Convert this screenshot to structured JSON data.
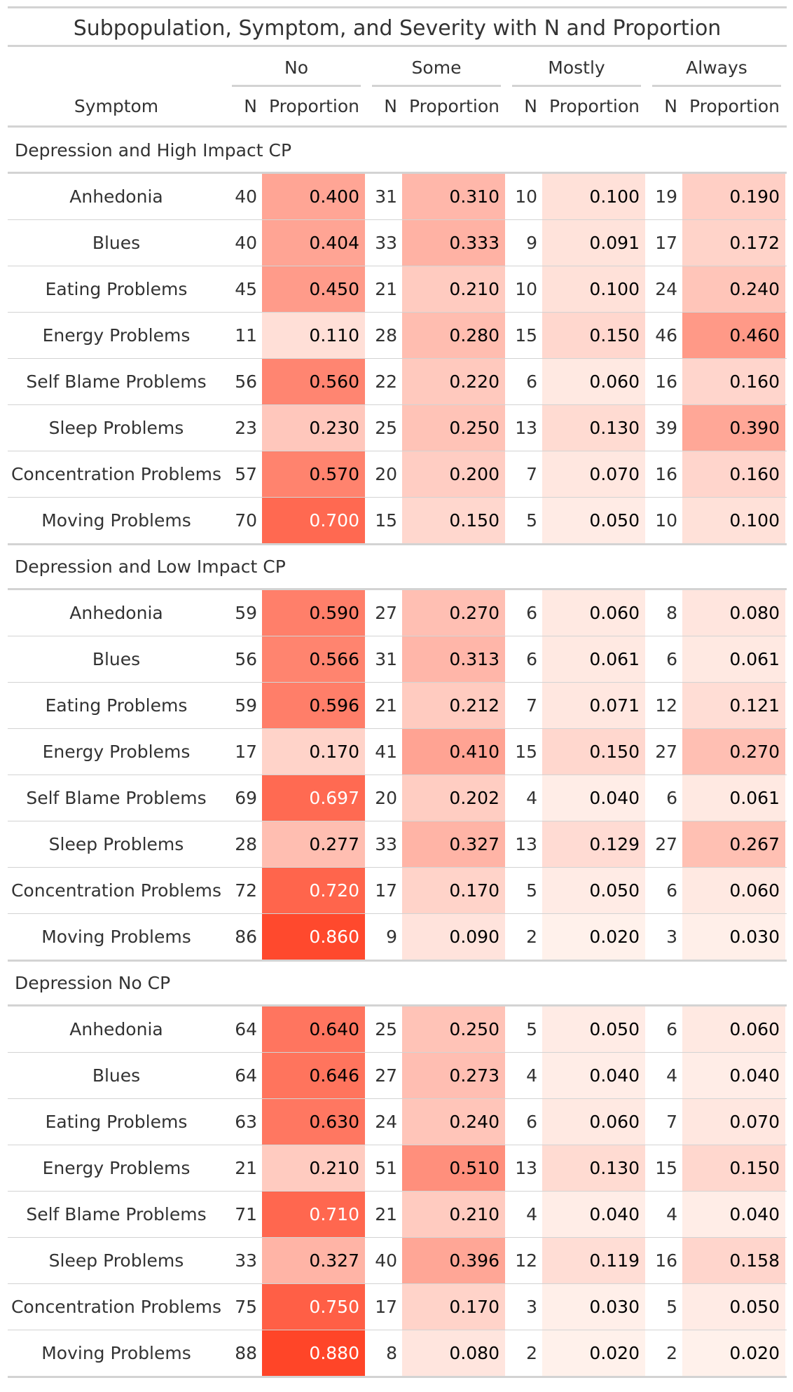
{
  "title": "Subpopulation, Symptom, and Severity with N and Proportion",
  "stub_header": "Symptom",
  "spanners": [
    "No",
    "Some",
    "Mostly",
    "Always"
  ],
  "col_n": "N",
  "col_prop": "Proportion",
  "colors": {
    "heat_low": "#fff5f0",
    "heat_high": "#ff4528",
    "rule": "#d3d3d3",
    "text": "#333333",
    "light_text": "#ffffff"
  },
  "groups": [
    {
      "label": "Depression and High Impact CP",
      "rows": [
        {
          "symptom": "Anhedonia",
          "n": [
            "40",
            "31",
            "10",
            "19"
          ],
          "p": [
            "0.400",
            "0.310",
            "0.100",
            "0.190"
          ]
        },
        {
          "symptom": "Blues",
          "n": [
            "40",
            "33",
            "9",
            "17"
          ],
          "p": [
            "0.404",
            "0.333",
            "0.091",
            "0.172"
          ]
        },
        {
          "symptom": "Eating Problems",
          "n": [
            "45",
            "21",
            "10",
            "24"
          ],
          "p": [
            "0.450",
            "0.210",
            "0.100",
            "0.240"
          ]
        },
        {
          "symptom": "Energy Problems",
          "n": [
            "11",
            "28",
            "15",
            "46"
          ],
          "p": [
            "0.110",
            "0.280",
            "0.150",
            "0.460"
          ]
        },
        {
          "symptom": "Self Blame Problems",
          "n": [
            "56",
            "22",
            "6",
            "16"
          ],
          "p": [
            "0.560",
            "0.220",
            "0.060",
            "0.160"
          ]
        },
        {
          "symptom": "Sleep Problems",
          "n": [
            "23",
            "25",
            "13",
            "39"
          ],
          "p": [
            "0.230",
            "0.250",
            "0.130",
            "0.390"
          ]
        },
        {
          "symptom": "Concentration Problems",
          "n": [
            "57",
            "20",
            "7",
            "16"
          ],
          "p": [
            "0.570",
            "0.200",
            "0.070",
            "0.160"
          ]
        },
        {
          "symptom": "Moving Problems",
          "n": [
            "70",
            "15",
            "5",
            "10"
          ],
          "p": [
            "0.700",
            "0.150",
            "0.050",
            "0.100"
          ]
        }
      ]
    },
    {
      "label": "Depression and Low Impact CP",
      "rows": [
        {
          "symptom": "Anhedonia",
          "n": [
            "59",
            "27",
            "6",
            "8"
          ],
          "p": [
            "0.590",
            "0.270",
            "0.060",
            "0.080"
          ]
        },
        {
          "symptom": "Blues",
          "n": [
            "56",
            "31",
            "6",
            "6"
          ],
          "p": [
            "0.566",
            "0.313",
            "0.061",
            "0.061"
          ]
        },
        {
          "symptom": "Eating Problems",
          "n": [
            "59",
            "21",
            "7",
            "12"
          ],
          "p": [
            "0.596",
            "0.212",
            "0.071",
            "0.121"
          ]
        },
        {
          "symptom": "Energy Problems",
          "n": [
            "17",
            "41",
            "15",
            "27"
          ],
          "p": [
            "0.170",
            "0.410",
            "0.150",
            "0.270"
          ]
        },
        {
          "symptom": "Self Blame Problems",
          "n": [
            "69",
            "20",
            "4",
            "6"
          ],
          "p": [
            "0.697",
            "0.202",
            "0.040",
            "0.061"
          ]
        },
        {
          "symptom": "Sleep Problems",
          "n": [
            "28",
            "33",
            "13",
            "27"
          ],
          "p": [
            "0.277",
            "0.327",
            "0.129",
            "0.267"
          ]
        },
        {
          "symptom": "Concentration Problems",
          "n": [
            "72",
            "17",
            "5",
            "6"
          ],
          "p": [
            "0.720",
            "0.170",
            "0.050",
            "0.060"
          ]
        },
        {
          "symptom": "Moving Problems",
          "n": [
            "86",
            "9",
            "2",
            "3"
          ],
          "p": [
            "0.860",
            "0.090",
            "0.020",
            "0.030"
          ]
        }
      ]
    },
    {
      "label": "Depression No CP",
      "rows": [
        {
          "symptom": "Anhedonia",
          "n": [
            "64",
            "25",
            "5",
            "6"
          ],
          "p": [
            "0.640",
            "0.250",
            "0.050",
            "0.060"
          ]
        },
        {
          "symptom": "Blues",
          "n": [
            "64",
            "27",
            "4",
            "4"
          ],
          "p": [
            "0.646",
            "0.273",
            "0.040",
            "0.040"
          ]
        },
        {
          "symptom": "Eating Problems",
          "n": [
            "63",
            "24",
            "6",
            "7"
          ],
          "p": [
            "0.630",
            "0.240",
            "0.060",
            "0.070"
          ]
        },
        {
          "symptom": "Energy Problems",
          "n": [
            "21",
            "51",
            "13",
            "15"
          ],
          "p": [
            "0.210",
            "0.510",
            "0.130",
            "0.150"
          ]
        },
        {
          "symptom": "Self Blame Problems",
          "n": [
            "71",
            "21",
            "4",
            "4"
          ],
          "p": [
            "0.710",
            "0.210",
            "0.040",
            "0.040"
          ]
        },
        {
          "symptom": "Sleep Problems",
          "n": [
            "33",
            "40",
            "12",
            "16"
          ],
          "p": [
            "0.327",
            "0.396",
            "0.119",
            "0.158"
          ]
        },
        {
          "symptom": "Concentration Problems",
          "n": [
            "75",
            "17",
            "3",
            "5"
          ],
          "p": [
            "0.750",
            "0.170",
            "0.030",
            "0.050"
          ]
        },
        {
          "symptom": "Moving Problems",
          "n": [
            "88",
            "8",
            "2",
            "2"
          ],
          "p": [
            "0.880",
            "0.080",
            "0.020",
            "0.020"
          ]
        }
      ]
    }
  ]
}
